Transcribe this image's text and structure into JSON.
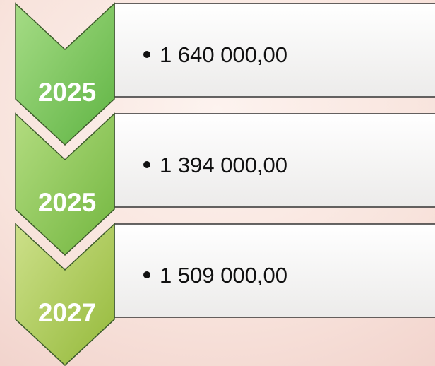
{
  "items": [
    {
      "label": "2025",
      "text": "1 640 000,00"
    },
    {
      "label": "2025",
      "text": "1 394 000,00"
    },
    {
      "label": "2027",
      "text": "1 509 000,00"
    }
  ]
}
